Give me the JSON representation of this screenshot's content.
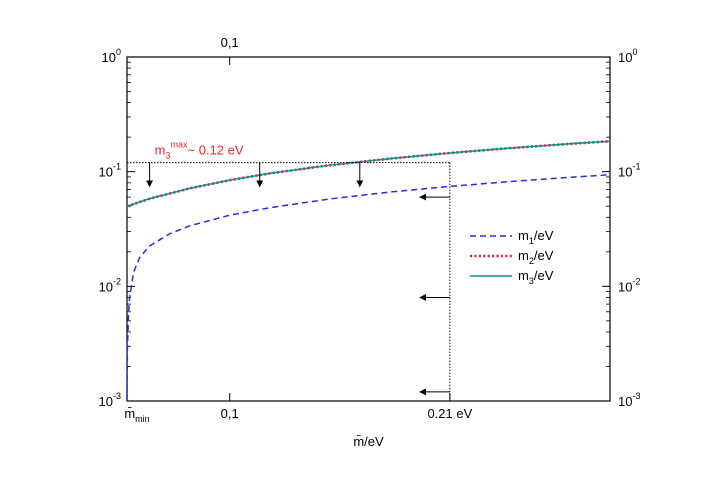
{
  "chart_data": {
    "type": "line",
    "title": "",
    "xlabel": "m̄/eV",
    "ylabel": "",
    "xscale": "linear",
    "yscale": "log",
    "xlim": [
      0.0487,
      0.29
    ],
    "ylim": [
      0.001,
      1
    ],
    "x_ticks_bottom": [
      {
        "value": 0.0487,
        "label": "m̄",
        "sub": "min"
      },
      {
        "value": 0.1,
        "label": "0,1"
      },
      {
        "value": 0.21,
        "label": "0.21 eV"
      }
    ],
    "x_ticks_top": [
      {
        "value": 0.1,
        "label": "0,1"
      }
    ],
    "y_ticks": [
      {
        "value": 1,
        "base": "10",
        "exp": "0"
      },
      {
        "value": 0.1,
        "base": "10",
        "exp": "-1"
      },
      {
        "value": 0.01,
        "base": "10",
        "exp": "-2"
      },
      {
        "value": 0.001,
        "base": "10",
        "exp": "-3"
      }
    ],
    "series": [
      {
        "name": "m1/eV",
        "sub": "1",
        "color": "#1f2fe0",
        "dash": "dashed",
        "x": [
          0.0487,
          0.0489,
          0.0495,
          0.05,
          0.052,
          0.055,
          0.06,
          0.07,
          0.08,
          0.1,
          0.12,
          0.15,
          0.18,
          0.21,
          0.24,
          0.27,
          0.29
        ],
        "y": [
          0.001,
          0.0028,
          0.006,
          0.008,
          0.0133,
          0.0178,
          0.0225,
          0.0287,
          0.0337,
          0.0417,
          0.0485,
          0.0578,
          0.0664,
          0.0744,
          0.082,
          0.0893,
          0.0941
        ]
      },
      {
        "name": "m2/eV",
        "sub": "2",
        "color": "#e8262b",
        "dash": "dotted",
        "x": [
          0.0487,
          0.06,
          0.08,
          0.1,
          0.12,
          0.15,
          0.18,
          0.21,
          0.24,
          0.27,
          0.29
        ],
        "y": [
          0.0498,
          0.0581,
          0.0715,
          0.0843,
          0.0966,
          0.1138,
          0.1299,
          0.1455,
          0.1605,
          0.1749,
          0.1842
        ]
      },
      {
        "name": "m3/eV",
        "sub": "3",
        "color": "#0f8f8c",
        "dash": "solid",
        "x": [
          0.0487,
          0.06,
          0.08,
          0.1,
          0.12,
          0.15,
          0.18,
          0.21,
          0.24,
          0.27,
          0.29
        ],
        "y": [
          0.05,
          0.0582,
          0.0716,
          0.0844,
          0.0967,
          0.1139,
          0.13,
          0.1456,
          0.1606,
          0.175,
          0.1843
        ]
      }
    ],
    "annotations": {
      "m3max": {
        "prefix": "m",
        "sub": "3",
        "sup": "max",
        "suffix": "~ 0.12 eV",
        "color": "#e8262b",
        "y": 0.12
      },
      "vertical_guide_x": 0.21,
      "down_arrows_x": [
        0.06,
        0.115,
        0.165
      ],
      "left_arrows_y": [
        0.06,
        0.008,
        0.0012
      ]
    },
    "grid": false,
    "legend_position": "center-right"
  }
}
